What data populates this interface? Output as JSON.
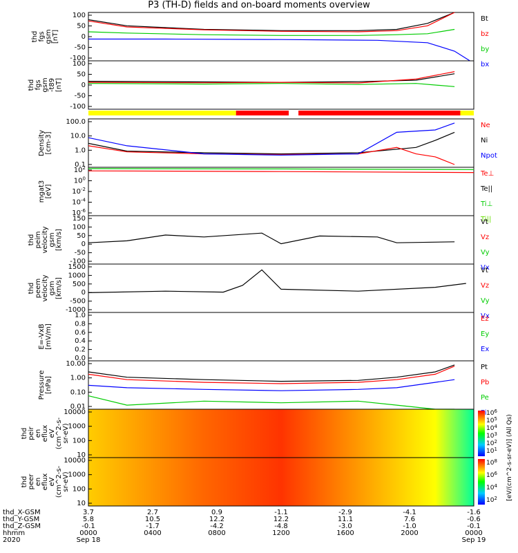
{
  "title": "P3 (TH-D) fields and on-board moments overview",
  "colors": {
    "black": "#000000",
    "red": "#ff0000",
    "green": "#00cc00",
    "blue": "#0000ff",
    "yellow": "#ffff00",
    "lightgreen": "#66dd00"
  },
  "status_bar": {
    "segments": [
      {
        "from": 0,
        "to": 0.383,
        "color": "yellow"
      },
      {
        "from": 0.383,
        "to": 0.52,
        "color": "red"
      },
      {
        "from": 0.52,
        "to": 0.545,
        "color": "white"
      },
      {
        "from": 0.545,
        "to": 0.965,
        "color": "red"
      },
      {
        "from": 0.965,
        "to": 1.0,
        "color": "yellow"
      }
    ]
  },
  "chart_data": [
    {
      "type": "line",
      "ylabel_lines": [
        "thd",
        "fgs",
        "gsm",
        "[nT]"
      ],
      "ylim": [
        -100,
        100
      ],
      "ticks": [
        "100",
        "50",
        "0",
        "-50",
        "-100"
      ],
      "legend": [
        {
          "name": "Bt",
          "color": "black"
        },
        {
          "name": "bz",
          "color": "red"
        },
        {
          "name": "by",
          "color": "green"
        },
        {
          "name": "bx",
          "color": "blue"
        }
      ],
      "series": [
        {
          "name": "Bt",
          "color": "black",
          "points": [
            [
              0,
              70
            ],
            [
              0.1,
              45
            ],
            [
              0.3,
              30
            ],
            [
              0.5,
              25
            ],
            [
              0.7,
              25
            ],
            [
              0.8,
              30
            ],
            [
              0.88,
              55
            ],
            [
              0.95,
              100
            ]
          ]
        },
        {
          "name": "bz",
          "color": "red",
          "points": [
            [
              0,
              65
            ],
            [
              0.1,
              40
            ],
            [
              0.3,
              28
            ],
            [
              0.5,
              22
            ],
            [
              0.7,
              20
            ],
            [
              0.8,
              25
            ],
            [
              0.88,
              45
            ],
            [
              0.95,
              100
            ]
          ]
        },
        {
          "name": "by",
          "color": "green",
          "points": [
            [
              0,
              20
            ],
            [
              0.1,
              15
            ],
            [
              0.3,
              8
            ],
            [
              0.5,
              5
            ],
            [
              0.7,
              5
            ],
            [
              0.8,
              8
            ],
            [
              0.88,
              12
            ],
            [
              0.95,
              30
            ]
          ]
        },
        {
          "name": "bx",
          "color": "blue",
          "points": [
            [
              0,
              -10
            ],
            [
              0.2,
              -10
            ],
            [
              0.5,
              -12
            ],
            [
              0.75,
              -15
            ],
            [
              0.88,
              -25
            ],
            [
              0.95,
              -60
            ],
            [
              0.99,
              -100
            ]
          ]
        }
      ]
    },
    {
      "type": "line",
      "ylabel_lines": [
        "thd",
        "fgs",
        "gsm",
        "-t89",
        "[nT]"
      ],
      "ylim": [
        -125,
        100
      ],
      "ticks": [
        "100",
        "50",
        "0",
        "-50",
        "-100"
      ],
      "legend": [],
      "series": [
        {
          "name": "",
          "color": "black",
          "points": [
            [
              0,
              5
            ],
            [
              0.3,
              2
            ],
            [
              0.5,
              0
            ],
            [
              0.7,
              3
            ],
            [
              0.85,
              10
            ],
            [
              0.95,
              40
            ]
          ]
        },
        {
          "name": "",
          "color": "red",
          "points": [
            [
              0,
              0
            ],
            [
              0.3,
              -2
            ],
            [
              0.5,
              0
            ],
            [
              0.7,
              -3
            ],
            [
              0.85,
              15
            ],
            [
              0.95,
              50
            ]
          ]
        },
        {
          "name": "",
          "color": "green",
          "points": [
            [
              0,
              -5
            ],
            [
              0.3,
              -8
            ],
            [
              0.5,
              -5
            ],
            [
              0.7,
              -10
            ],
            [
              0.85,
              -5
            ],
            [
              0.95,
              -20
            ]
          ]
        }
      ]
    },
    {
      "type": "line",
      "ylabel_lines": [
        "Density",
        "[cm-3]"
      ],
      "scale": "log",
      "ylim": [
        0.05,
        200
      ],
      "ticks": [
        "100.0",
        "10.0",
        "1.0",
        "0.1"
      ],
      "legend": [
        {
          "name": "Ne",
          "color": "red"
        },
        {
          "name": "Ni",
          "color": "black"
        },
        {
          "name": "Npot",
          "color": "blue"
        }
      ],
      "series": [
        {
          "name": "Ni",
          "color": "black",
          "points": [
            [
              0,
              3
            ],
            [
              0.1,
              0.8
            ],
            [
              0.3,
              0.6
            ],
            [
              0.5,
              0.5
            ],
            [
              0.7,
              0.6
            ],
            [
              0.85,
              1.5
            ],
            [
              0.9,
              5
            ],
            [
              0.95,
              20
            ]
          ]
        },
        {
          "name": "Ne",
          "color": "red",
          "points": [
            [
              0,
              2
            ],
            [
              0.1,
              0.7
            ],
            [
              0.3,
              0.5
            ],
            [
              0.5,
              0.45
            ],
            [
              0.7,
              0.5
            ],
            [
              0.8,
              1.5
            ],
            [
              0.85,
              0.5
            ],
            [
              0.9,
              0.3
            ],
            [
              0.95,
              0.08
            ]
          ]
        },
        {
          "name": "Npot",
          "color": "blue",
          "points": [
            [
              0,
              8
            ],
            [
              0.1,
              2
            ],
            [
              0.3,
              0.5
            ],
            [
              0.5,
              0.4
            ],
            [
              0.7,
              0.5
            ],
            [
              0.8,
              20
            ],
            [
              0.9,
              30
            ],
            [
              0.95,
              100
            ]
          ]
        }
      ]
    },
    {
      "type": "line",
      "ylabel_lines": [
        "mgat3",
        "[eV]"
      ],
      "scale": "log",
      "ylim": [
        0.0001,
        300
      ],
      "ticks": [
        "10",
        "10",
        "10",
        "10",
        "10"
      ],
      "tick_exponents": [
        "2",
        "0",
        "-2",
        "-4",
        "-6"
      ],
      "legend": [
        {
          "name": "Te⊥",
          "color": "red"
        },
        {
          "name": "Te||",
          "color": "black"
        },
        {
          "name": "Ti⊥",
          "color": "green"
        },
        {
          "name": "Ti||",
          "color": "lightgreen"
        }
      ],
      "series": [
        {
          "name": "Ti",
          "color": "green",
          "points": [
            [
              0,
              200
            ],
            [
              0.5,
              180
            ],
            [
              1,
              150
            ]
          ]
        },
        {
          "name": "Te",
          "color": "red",
          "points": [
            [
              0,
              100
            ],
            [
              0.5,
              80
            ],
            [
              1,
              60
            ]
          ]
        }
      ]
    },
    {
      "type": "line",
      "ylabel_lines": [
        "thd",
        "peim",
        "velocity",
        "gsm",
        "[km/s]"
      ],
      "ylim": [
        -100,
        150
      ],
      "ticks": [
        "150",
        "100",
        "50",
        "0",
        "-50",
        "-100"
      ],
      "legend": [
        {
          "name": "Vt",
          "color": "black"
        },
        {
          "name": "Vz",
          "color": "red"
        },
        {
          "name": "Vy",
          "color": "green"
        },
        {
          "name": "Vx",
          "color": "blue"
        }
      ],
      "series": [
        {
          "name": "Vt",
          "color": "black",
          "points": [
            [
              0,
              10
            ],
            [
              0.1,
              20
            ],
            [
              0.2,
              50
            ],
            [
              0.3,
              40
            ],
            [
              0.45,
              60
            ],
            [
              0.5,
              5
            ],
            [
              0.6,
              45
            ],
            [
              0.75,
              40
            ],
            [
              0.8,
              10
            ],
            [
              0.95,
              15
            ]
          ]
        }
      ]
    },
    {
      "type": "line",
      "ylabel_lines": [
        "thd",
        "peem",
        "velocity",
        "gsm",
        "[km/s]"
      ],
      "ylim": [
        -1000,
        1500
      ],
      "ticks": [
        "1500",
        "1000",
        "500",
        "0",
        "-500",
        "-1000"
      ],
      "legend": [
        {
          "name": "Vt",
          "color": "black"
        },
        {
          "name": "Vz",
          "color": "red"
        },
        {
          "name": "Vy",
          "color": "green"
        },
        {
          "name": "Vx",
          "color": "blue"
        }
      ],
      "series": [
        {
          "name": "Vt",
          "color": "black",
          "points": [
            [
              0,
              20
            ],
            [
              0.2,
              100
            ],
            [
              0.35,
              50
            ],
            [
              0.4,
              400
            ],
            [
              0.45,
              1200
            ],
            [
              0.5,
              200
            ],
            [
              0.7,
              100
            ],
            [
              0.9,
              300
            ],
            [
              0.98,
              500
            ]
          ]
        }
      ]
    },
    {
      "type": "line",
      "ylabel_lines": [
        "E=-VxB",
        "[mV/m]"
      ],
      "ylim": [
        0,
        1
      ],
      "ticks": [
        "1.0",
        "0.8",
        "0.6",
        "0.4",
        "0.2",
        "0.0"
      ],
      "legend": [
        {
          "name": "Ez",
          "color": "red"
        },
        {
          "name": "Ey",
          "color": "green"
        },
        {
          "name": "Ex",
          "color": "blue"
        }
      ],
      "series": []
    },
    {
      "type": "line",
      "ylabel_lines": [
        "Pressure",
        "[nPa]"
      ],
      "scale": "log",
      "ylim": [
        0.005,
        20
      ],
      "ticks": [
        "10.00",
        "1.00",
        "0.10",
        "0.01"
      ],
      "legend": [
        {
          "name": "Pt",
          "color": "black"
        },
        {
          "name": "Pb",
          "color": "red"
        },
        {
          "name": "Pe",
          "color": "green"
        },
        {
          "name": "Pi",
          "color": "blue"
        }
      ],
      "series": [
        {
          "name": "Pt",
          "color": "black",
          "points": [
            [
              0,
              3
            ],
            [
              0.1,
              1.2
            ],
            [
              0.3,
              0.8
            ],
            [
              0.5,
              0.6
            ],
            [
              0.7,
              0.7
            ],
            [
              0.8,
              1.2
            ],
            [
              0.9,
              3
            ],
            [
              0.95,
              10
            ]
          ]
        },
        {
          "name": "Pb",
          "color": "red",
          "points": [
            [
              0,
              2
            ],
            [
              0.1,
              0.8
            ],
            [
              0.3,
              0.5
            ],
            [
              0.5,
              0.4
            ],
            [
              0.7,
              0.5
            ],
            [
              0.8,
              0.8
            ],
            [
              0.9,
              2
            ],
            [
              0.95,
              8
            ]
          ]
        },
        {
          "name": "Pe",
          "color": "green",
          "points": [
            [
              0,
              0.05
            ],
            [
              0.1,
              0.01
            ],
            [
              0.3,
              0.02
            ],
            [
              0.5,
              0.015
            ],
            [
              0.7,
              0.02
            ],
            [
              0.8,
              0.01
            ],
            [
              0.9,
              0.005
            ],
            [
              0.95,
              0.005
            ]
          ]
        },
        {
          "name": "Pi",
          "color": "blue",
          "points": [
            [
              0,
              0.3
            ],
            [
              0.1,
              0.2
            ],
            [
              0.3,
              0.15
            ],
            [
              0.5,
              0.12
            ],
            [
              0.7,
              0.15
            ],
            [
              0.8,
              0.2
            ],
            [
              0.9,
              0.5
            ],
            [
              0.95,
              0.8
            ]
          ]
        }
      ]
    },
    {
      "type": "heatmap",
      "ylabel_lines": [
        "thd",
        "peir",
        "en",
        "eflux",
        "eV",
        "(cm^2-s-",
        "sr-eV)"
      ],
      "ticks": [
        "10000",
        "1000",
        "100",
        "10"
      ]
    },
    {
      "type": "heatmap",
      "ylabel_lines": [
        "thd",
        "peer",
        "en",
        "eflux",
        "eV",
        "(cm^2-s-",
        "sr-eV)"
      ],
      "ticks": [
        "10000",
        "1000",
        "100",
        "10"
      ]
    }
  ],
  "colorbar": {
    "label": "[eV/(cm^2-s-sr-eV)] (All Qs)",
    "ticks_top": [
      "10",
      "10",
      "10",
      "10",
      "10",
      "10"
    ],
    "ticks_top_exp": [
      "6",
      "5",
      "4",
      "3",
      "2",
      "1"
    ],
    "ticks_bottom": [
      "10",
      "10",
      "10",
      "10"
    ],
    "ticks_bottom_exp": [
      "8",
      "6",
      "4",
      "2"
    ]
  },
  "x_axis": {
    "row_labels": [
      "thd_X-GSM",
      "thd_Y-GSM",
      "thd_Z-GSM",
      "hhmm",
      "2020"
    ],
    "columns": [
      {
        "x": 3.7,
        "y": 5.8,
        "z": -0.1,
        "hhmm": "0000",
        "date": "Sep 18"
      },
      {
        "x": 2.7,
        "y": 10.5,
        "z": -1.7,
        "hhmm": "0400",
        "date": ""
      },
      {
        "x": 0.9,
        "y": 12.2,
        "z": -4.2,
        "hhmm": "0800",
        "date": ""
      },
      {
        "x": -1.1,
        "y": 12.2,
        "z": -4.8,
        "hhmm": "1200",
        "date": ""
      },
      {
        "x": -2.9,
        "y": 11.1,
        "z": -3.0,
        "hhmm": "1600",
        "date": ""
      },
      {
        "x": -4.1,
        "y": 7.6,
        "z": -1.0,
        "hhmm": "2000",
        "date": ""
      },
      {
        "x": -1.6,
        "y": -0.6,
        "z": -0.1,
        "hhmm": "0000",
        "date": "Sep 19"
      }
    ]
  }
}
